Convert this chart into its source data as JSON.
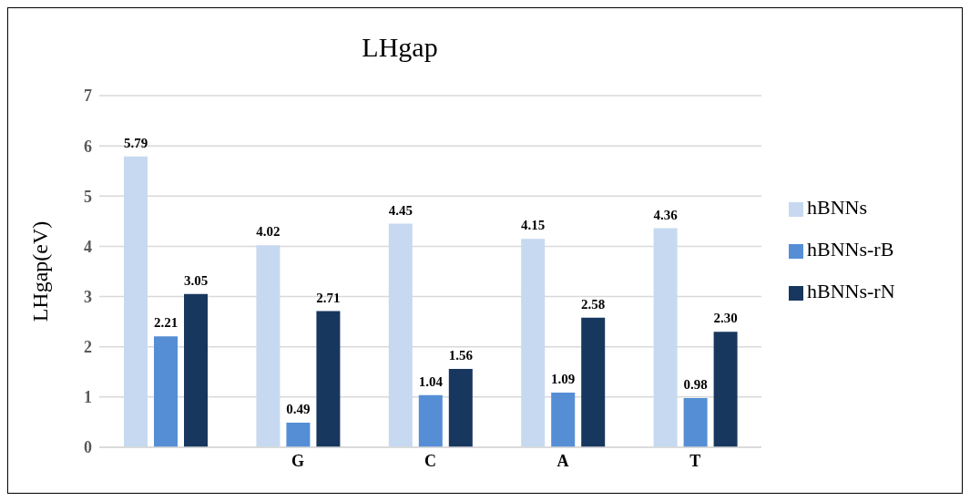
{
  "chart_data": {
    "type": "bar",
    "title": "LHgap",
    "ylabel": "LHgap(eV)",
    "categories": [
      null,
      "G",
      "C",
      "A",
      "T"
    ],
    "series": [
      {
        "name": "hBNNs",
        "color": "#c6d9f0",
        "values": [
          5.79,
          4.02,
          4.45,
          4.15,
          4.36
        ],
        "value_labels": [
          "5.79",
          "4.02",
          "4.45",
          "4.15",
          "4.36"
        ]
      },
      {
        "name": "hBNNs-rB",
        "color": "#558ed5",
        "values": [
          2.21,
          0.49,
          1.04,
          1.09,
          0.98
        ],
        "value_labels": [
          "2.21",
          "0.49",
          "1.04",
          "1.09",
          "0.98"
        ]
      },
      {
        "name": "hBNNs-rN",
        "color": "#17375e",
        "values": [
          3.05,
          2.71,
          1.56,
          2.58,
          2.3
        ],
        "value_labels": [
          "3.05",
          "2.71",
          "1.56",
          "2.58",
          "2.30"
        ]
      }
    ],
    "ylim": [
      0,
      7
    ],
    "yticks": [
      0,
      1,
      2,
      3,
      4,
      5,
      6,
      7
    ],
    "grid": "y",
    "legend": "right"
  }
}
